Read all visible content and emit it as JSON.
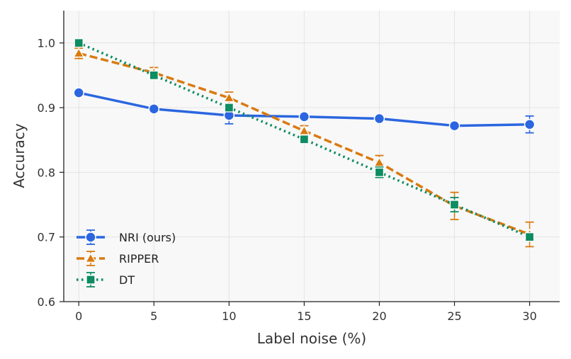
{
  "chart_data": {
    "type": "line",
    "xlabel": "Label noise (%)",
    "ylabel": "Accuracy",
    "xlim": [
      -1,
      32
    ],
    "ylim": [
      0.6,
      1.05
    ],
    "xticks": [
      0,
      5,
      10,
      15,
      20,
      25,
      30
    ],
    "xtick_labels": [
      "0",
      "5",
      "10",
      "15",
      "20",
      "25",
      "30"
    ],
    "yticks": [
      0.6,
      0.7,
      0.8,
      0.9,
      1.0
    ],
    "ytick_labels": [
      "0.6",
      "0.7",
      "0.8",
      "0.9",
      "1.0"
    ],
    "grid": true,
    "legend_position": "lower-left",
    "x": [
      0,
      5,
      10,
      15,
      20,
      25,
      30
    ],
    "series": [
      {
        "name": "NRI (ours)",
        "values": [
          0.923,
          0.898,
          0.888,
          0.886,
          0.883,
          0.872,
          0.874
        ],
        "errors": [
          0.003,
          0.005,
          0.013,
          0.003,
          0.003,
          0.004,
          0.013
        ],
        "color": "#2b66e0",
        "dash": "solid",
        "marker": "circle"
      },
      {
        "name": "RIPPER",
        "values": [
          0.984,
          0.954,
          0.915,
          0.864,
          0.815,
          0.748,
          0.704
        ],
        "errors": [
          0.008,
          0.008,
          0.009,
          0.008,
          0.011,
          0.021,
          0.019
        ],
        "color": "#d97a10",
        "dash": "dashed",
        "marker": "triangle"
      },
      {
        "name": "DT",
        "values": [
          1.0,
          0.95,
          0.9,
          0.851,
          0.8,
          0.75,
          0.7
        ],
        "errors": [
          0.002,
          0.002,
          0.004,
          0.004,
          0.008,
          0.011,
          0.004
        ],
        "color": "#0e8c62",
        "dash": "dotted",
        "marker": "square"
      }
    ]
  }
}
